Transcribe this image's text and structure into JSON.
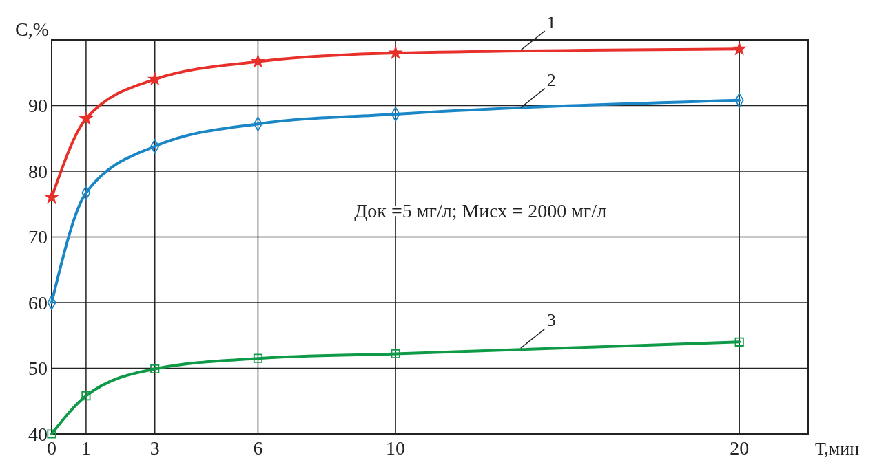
{
  "chart_data": {
    "type": "line",
    "xlabel": "Т,мин",
    "ylabel": "С,%",
    "x": [
      0,
      1,
      3,
      6,
      10,
      20
    ],
    "xlim": [
      0,
      22
    ],
    "xticks": [
      0,
      1,
      3,
      6,
      10,
      20
    ],
    "ylim": [
      40,
      100
    ],
    "yticks": [
      40,
      50,
      60,
      70,
      80,
      90,
      {
        "value": 100,
        "label": null
      }
    ],
    "grid": true,
    "line_style": "solid",
    "series": [
      {
        "name": "1",
        "color": "#e8302a",
        "marker": "star",
        "values": [
          76,
          88,
          94,
          96.7,
          98,
          98.6
        ]
      },
      {
        "name": "2",
        "color": "#1a86c6",
        "marker": "diamond",
        "values": [
          60,
          76.7,
          83.8,
          87.2,
          88.7,
          90.8
        ]
      },
      {
        "name": "3",
        "color": "#0f9a48",
        "marker": "square",
        "values": [
          40,
          45.8,
          49.9,
          51.5,
          52.2,
          54
        ]
      }
    ],
    "annotations": [
      "Док =5 мг/л;  Мисх = 2000 мг/л"
    ]
  }
}
